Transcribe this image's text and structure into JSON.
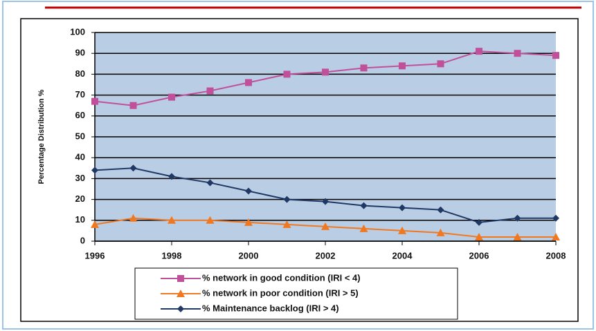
{
  "chart_data": {
    "type": "line",
    "ylabel": "Percentage Distribution %",
    "x": [
      1996,
      1997,
      1998,
      1999,
      2000,
      2001,
      2002,
      2003,
      2004,
      2005,
      2006,
      2007,
      2008
    ],
    "xlim": [
      1996,
      2008
    ],
    "xticks": [
      1996,
      1998,
      2000,
      2002,
      2004,
      2006,
      2008
    ],
    "ylim": [
      0,
      100
    ],
    "yticks": [
      0,
      10,
      20,
      30,
      40,
      50,
      60,
      70,
      80,
      90,
      100
    ],
    "grid": true,
    "legend": "bottom",
    "series": [
      {
        "name": "% network in good condition (IRI < 4)",
        "color": "#c0509a",
        "marker": "square",
        "values": [
          67,
          65,
          69,
          72,
          76,
          80,
          81,
          83,
          84,
          85,
          91,
          90,
          89
        ]
      },
      {
        "name": "% network in poor condition (IRI > 5)",
        "color": "#f07820",
        "marker": "triangle",
        "values": [
          8,
          11,
          10,
          10,
          9,
          8,
          7,
          6,
          5,
          4,
          2,
          2,
          2
        ]
      },
      {
        "name": "% Maintenance backlog  (IRI > 4)",
        "color": "#1f3864",
        "marker": "diamond",
        "values": [
          34,
          35,
          31,
          28,
          24,
          20,
          19,
          17,
          16,
          15,
          9,
          11,
          11
        ]
      }
    ]
  }
}
